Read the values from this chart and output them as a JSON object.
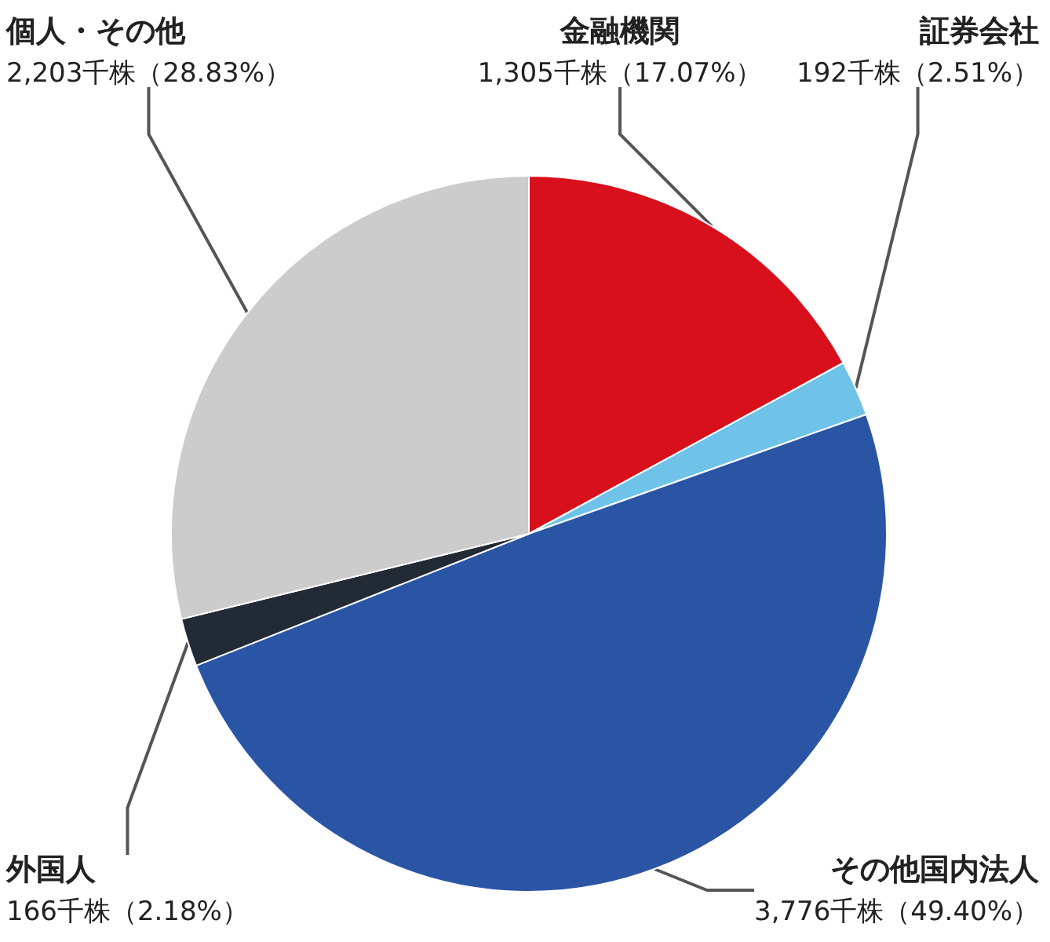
{
  "chart_data": {
    "type": "pie",
    "categories": [
      "金融機関",
      "証券会社",
      "その他国内法人",
      "外国人",
      "個人・その他"
    ],
    "values": [
      1305,
      192,
      3776,
      166,
      2203
    ],
    "value_labels": [
      "1,305千株（17.07%）",
      "192千株（2.51%）",
      "3,776千株（49.40%）",
      "166千株（2.18%）",
      "2,203千株（28.83%）"
    ],
    "colors": [
      "#d7101c",
      "#6fc3e8",
      "#2a55a5",
      "#222a35",
      "#cccccc"
    ],
    "legend": false
  }
}
